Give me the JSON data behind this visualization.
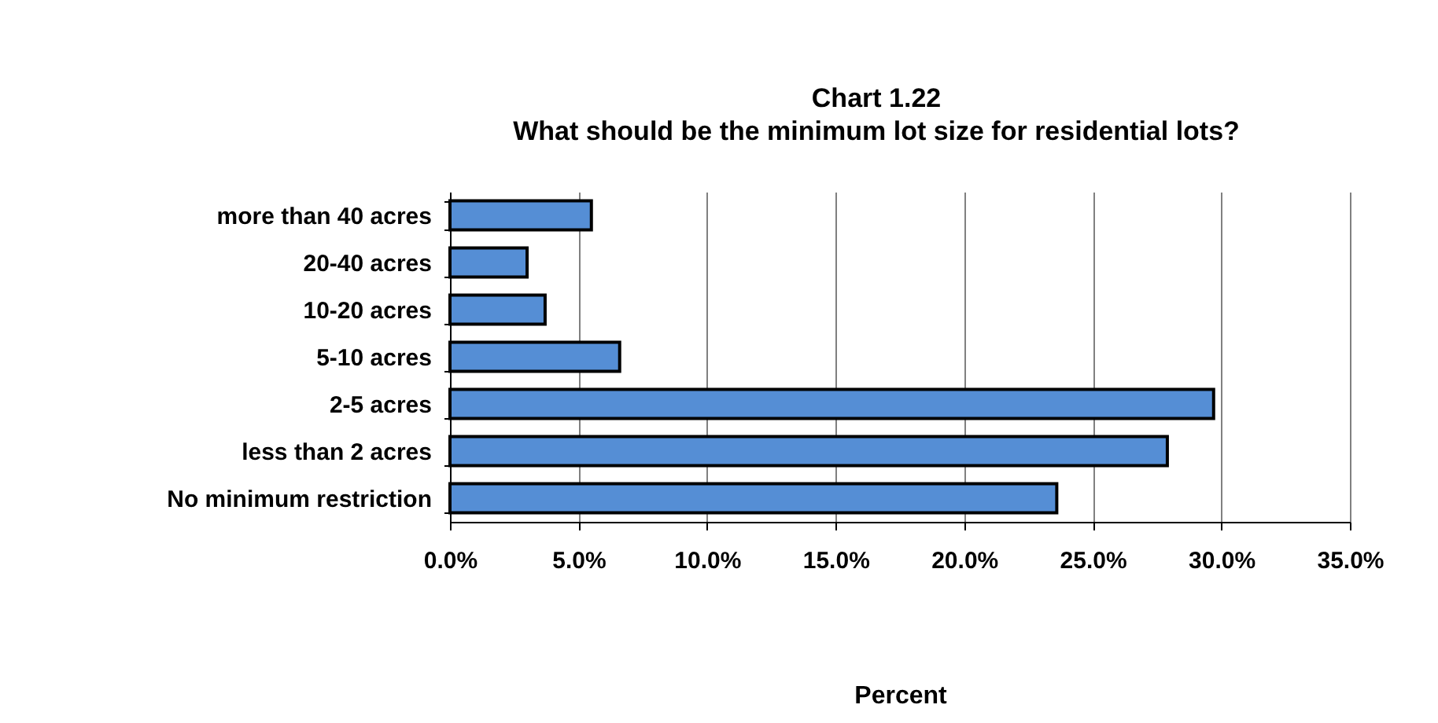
{
  "chart_data": {
    "type": "bar",
    "orientation": "horizontal",
    "title": "Chart 1.22",
    "subtitle": "What should be the minimum lot size for residential lots?",
    "xlabel": "Percent",
    "categories": [
      "more than 40 acres",
      "20-40 acres",
      "10-20 acres",
      "5-10 acres",
      "2-5 acres",
      "less than 2 acres",
      "No minimum restriction"
    ],
    "values": [
      5.5,
      3.0,
      3.7,
      6.6,
      29.7,
      27.9,
      23.6
    ],
    "color": "#558ed5",
    "xlim": [
      0,
      35
    ],
    "xticks": [
      {
        "value": 0,
        "label": "0.0%"
      },
      {
        "value": 5,
        "label": "5.0%"
      },
      {
        "value": 10,
        "label": "10.0%"
      },
      {
        "value": 15,
        "label": "15.0%"
      },
      {
        "value": 20,
        "label": "20.0%"
      },
      {
        "value": 25,
        "label": "25.0%"
      },
      {
        "value": 30,
        "label": "30.0%"
      },
      {
        "value": 35,
        "label": "35.0%"
      }
    ],
    "grid": "x"
  }
}
